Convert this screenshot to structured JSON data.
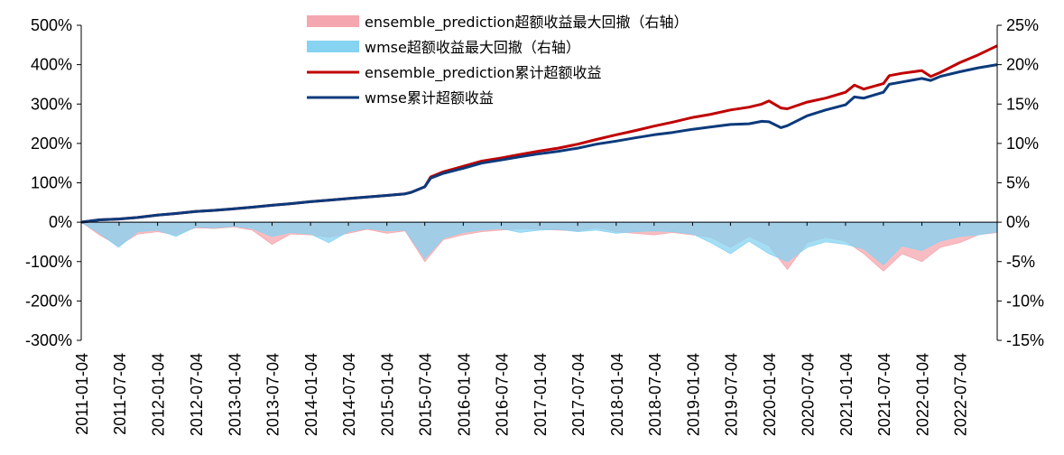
{
  "chart_data": {
    "type": "line",
    "title": "",
    "xlabel": "",
    "ylabel": "",
    "grid": false,
    "legend_position": "top-center",
    "x_range": [
      "2011-01-04",
      "2022-12-30"
    ],
    "x_ticks": [
      "2011-01-04",
      "2011-07-04",
      "2012-01-04",
      "2012-07-04",
      "2013-01-04",
      "2013-07-04",
      "2014-01-04",
      "2014-07-04",
      "2015-01-04",
      "2015-07-04",
      "2016-01-04",
      "2016-07-04",
      "2017-01-04",
      "2017-07-04",
      "2018-01-04",
      "2018-07-04",
      "2019-01-04",
      "2019-07-04",
      "2020-01-04",
      "2020-07-04",
      "2021-01-04",
      "2021-07-04",
      "2022-01-04",
      "2022-07-04"
    ],
    "y_left": {
      "range": [
        -300,
        500
      ],
      "ticks": [
        "-300%",
        "-200%",
        "-100%",
        "0%",
        "100%",
        "200%",
        "300%",
        "400%",
        "500%"
      ]
    },
    "y_right": {
      "range": [
        -15,
        25
      ],
      "ticks": [
        "-15%",
        "-10%",
        "-5%",
        "0%",
        "5%",
        "10%",
        "15%",
        "20%",
        "25%"
      ]
    },
    "series": [
      {
        "name": "ensemble_prediction超额收益最大回撤（右轴）",
        "type": "area",
        "axis": "right",
        "color": "#F4A7AE",
        "x": [
          "2011-01-04",
          "2011-04-01",
          "2011-07-01",
          "2011-10-01",
          "2012-01-04",
          "2012-04-01",
          "2012-07-04",
          "2012-10-01",
          "2013-01-04",
          "2013-04-01",
          "2013-07-04",
          "2013-10-01",
          "2014-01-04",
          "2014-04-01",
          "2014-07-04",
          "2014-10-01",
          "2015-01-04",
          "2015-04-01",
          "2015-07-04",
          "2015-10-01",
          "2016-01-04",
          "2016-04-01",
          "2016-07-04",
          "2016-10-01",
          "2017-01-04",
          "2017-04-01",
          "2017-07-04",
          "2017-10-01",
          "2018-01-04",
          "2018-04-01",
          "2018-07-04",
          "2018-10-01",
          "2019-01-04",
          "2019-04-01",
          "2019-07-04",
          "2019-10-01",
          "2020-01-04",
          "2020-04-01",
          "2020-07-04",
          "2020-10-01",
          "2021-01-04",
          "2021-04-01",
          "2021-07-04",
          "2021-10-01",
          "2022-01-04",
          "2022-04-01",
          "2022-07-04",
          "2022-10-01",
          "2022-12-30"
        ],
        "values": [
          0,
          -1.6,
          -3.0,
          -1.5,
          -1.2,
          -1.6,
          -0.7,
          -0.8,
          -0.6,
          -1.0,
          -2.8,
          -1.5,
          -1.6,
          -1.9,
          -1.4,
          -0.9,
          -1.4,
          -1.1,
          -5.0,
          -2.2,
          -1.6,
          -1.2,
          -1.0,
          -0.8,
          -0.9,
          -1.0,
          -1.1,
          -0.7,
          -1.2,
          -1.4,
          -1.6,
          -1.3,
          -1.6,
          -1.9,
          -3.2,
          -1.8,
          -3.0,
          -6.0,
          -2.6,
          -1.9,
          -2.4,
          -4.0,
          -6.2,
          -4.0,
          -5.0,
          -3.2,
          -2.6,
          -1.6,
          -1.3
        ]
      },
      {
        "name": "wmse超额收益最大回撤（右轴）",
        "type": "area",
        "axis": "right",
        "color": "#86D3F2",
        "x": [
          "2011-01-04",
          "2011-04-01",
          "2011-07-01",
          "2011-10-01",
          "2012-01-04",
          "2012-04-01",
          "2012-07-04",
          "2012-10-01",
          "2013-01-04",
          "2013-04-01",
          "2013-07-04",
          "2013-10-01",
          "2014-01-04",
          "2014-04-01",
          "2014-07-04",
          "2014-10-01",
          "2015-01-04",
          "2015-04-01",
          "2015-07-04",
          "2015-10-01",
          "2016-01-04",
          "2016-04-01",
          "2016-07-04",
          "2016-10-01",
          "2017-01-04",
          "2017-04-01",
          "2017-07-04",
          "2017-10-01",
          "2018-01-04",
          "2018-04-01",
          "2018-07-04",
          "2018-10-01",
          "2019-01-04",
          "2019-04-01",
          "2019-07-04",
          "2019-10-01",
          "2020-01-04",
          "2020-04-01",
          "2020-07-04",
          "2020-10-01",
          "2021-01-04",
          "2021-04-01",
          "2021-07-04",
          "2021-10-01",
          "2022-01-04",
          "2022-04-01",
          "2022-07-04",
          "2022-10-01",
          "2022-12-30"
        ],
        "values": [
          0,
          -1.4,
          -3.2,
          -1.2,
          -1.0,
          -1.8,
          -0.6,
          -0.7,
          -0.5,
          -0.8,
          -1.8,
          -1.3,
          -1.5,
          -2.6,
          -1.2,
          -0.8,
          -1.1,
          -1.0,
          -4.6,
          -2.0,
          -1.3,
          -1.0,
          -0.8,
          -1.3,
          -1.0,
          -0.9,
          -1.2,
          -1.0,
          -1.4,
          -1.2,
          -1.1,
          -1.2,
          -1.5,
          -2.6,
          -4.0,
          -2.4,
          -4.0,
          -5.0,
          -3.2,
          -2.5,
          -2.8,
          -3.4,
          -5.4,
          -3.0,
          -3.6,
          -2.4,
          -1.8,
          -1.6,
          -1.2
        ]
      },
      {
        "name": "ensemble_prediction累计超额收益",
        "type": "line",
        "axis": "left",
        "color": "#C00000",
        "x": [
          "2011-01-04",
          "2011-04-01",
          "2011-07-01",
          "2011-10-01",
          "2012-01-04",
          "2012-04-01",
          "2012-07-04",
          "2012-10-01",
          "2013-01-04",
          "2013-04-01",
          "2013-07-04",
          "2013-10-01",
          "2014-01-04",
          "2014-04-01",
          "2014-07-04",
          "2014-10-01",
          "2015-01-04",
          "2015-04-01",
          "2015-05-01",
          "2015-07-04",
          "2015-08-01",
          "2015-10-01",
          "2016-01-04",
          "2016-04-01",
          "2016-07-04",
          "2016-10-01",
          "2017-01-04",
          "2017-04-01",
          "2017-07-04",
          "2017-10-01",
          "2018-01-04",
          "2018-04-01",
          "2018-07-04",
          "2018-10-01",
          "2019-01-04",
          "2019-04-01",
          "2019-07-04",
          "2019-10-01",
          "2019-12-01",
          "2020-01-04",
          "2020-03-01",
          "2020-04-01",
          "2020-07-04",
          "2020-10-01",
          "2021-01-04",
          "2021-02-15",
          "2021-04-01",
          "2021-07-04",
          "2021-08-01",
          "2021-10-01",
          "2022-01-04",
          "2022-02-15",
          "2022-04-01",
          "2022-07-04",
          "2022-10-01",
          "2022-12-30"
        ],
        "values": [
          0,
          6,
          8,
          12,
          18,
          22,
          27,
          30,
          34,
          38,
          43,
          47,
          52,
          56,
          60,
          64,
          68,
          72,
          76,
          90,
          115,
          128,
          142,
          155,
          163,
          172,
          181,
          188,
          198,
          210,
          222,
          232,
          244,
          254,
          266,
          274,
          285,
          292,
          300,
          308,
          290,
          288,
          305,
          315,
          330,
          348,
          338,
          352,
          372,
          378,
          385,
          370,
          380,
          405,
          425,
          448
        ]
      },
      {
        "name": "wmse累计超额收益",
        "type": "line",
        "axis": "left",
        "color": "#0B3A7C",
        "x": [
          "2011-01-04",
          "2011-04-01",
          "2011-07-01",
          "2011-10-01",
          "2012-01-04",
          "2012-04-01",
          "2012-07-04",
          "2012-10-01",
          "2013-01-04",
          "2013-04-01",
          "2013-07-04",
          "2013-10-01",
          "2014-01-04",
          "2014-04-01",
          "2014-07-04",
          "2014-10-01",
          "2015-01-04",
          "2015-04-01",
          "2015-05-01",
          "2015-07-04",
          "2015-08-01",
          "2015-10-01",
          "2016-01-04",
          "2016-04-01",
          "2016-07-04",
          "2016-10-01",
          "2017-01-04",
          "2017-04-01",
          "2017-07-04",
          "2017-10-01",
          "2018-01-04",
          "2018-04-01",
          "2018-07-04",
          "2018-10-01",
          "2019-01-04",
          "2019-04-01",
          "2019-07-04",
          "2019-10-01",
          "2019-12-01",
          "2020-01-04",
          "2020-03-01",
          "2020-04-01",
          "2020-07-04",
          "2020-10-01",
          "2021-01-04",
          "2021-02-15",
          "2021-04-01",
          "2021-07-04",
          "2021-08-01",
          "2021-10-01",
          "2022-01-04",
          "2022-02-15",
          "2022-04-01",
          "2022-07-04",
          "2022-10-01",
          "2022-12-30"
        ],
        "values": [
          0,
          6,
          8,
          12,
          18,
          22,
          27,
          30,
          34,
          38,
          43,
          47,
          52,
          56,
          60,
          64,
          68,
          72,
          76,
          90,
          112,
          124,
          137,
          150,
          158,
          166,
          174,
          180,
          188,
          198,
          206,
          214,
          222,
          228,
          236,
          242,
          248,
          250,
          256,
          255,
          240,
          245,
          270,
          285,
          298,
          318,
          315,
          330,
          350,
          356,
          365,
          360,
          370,
          382,
          392,
          400
        ]
      }
    ]
  }
}
